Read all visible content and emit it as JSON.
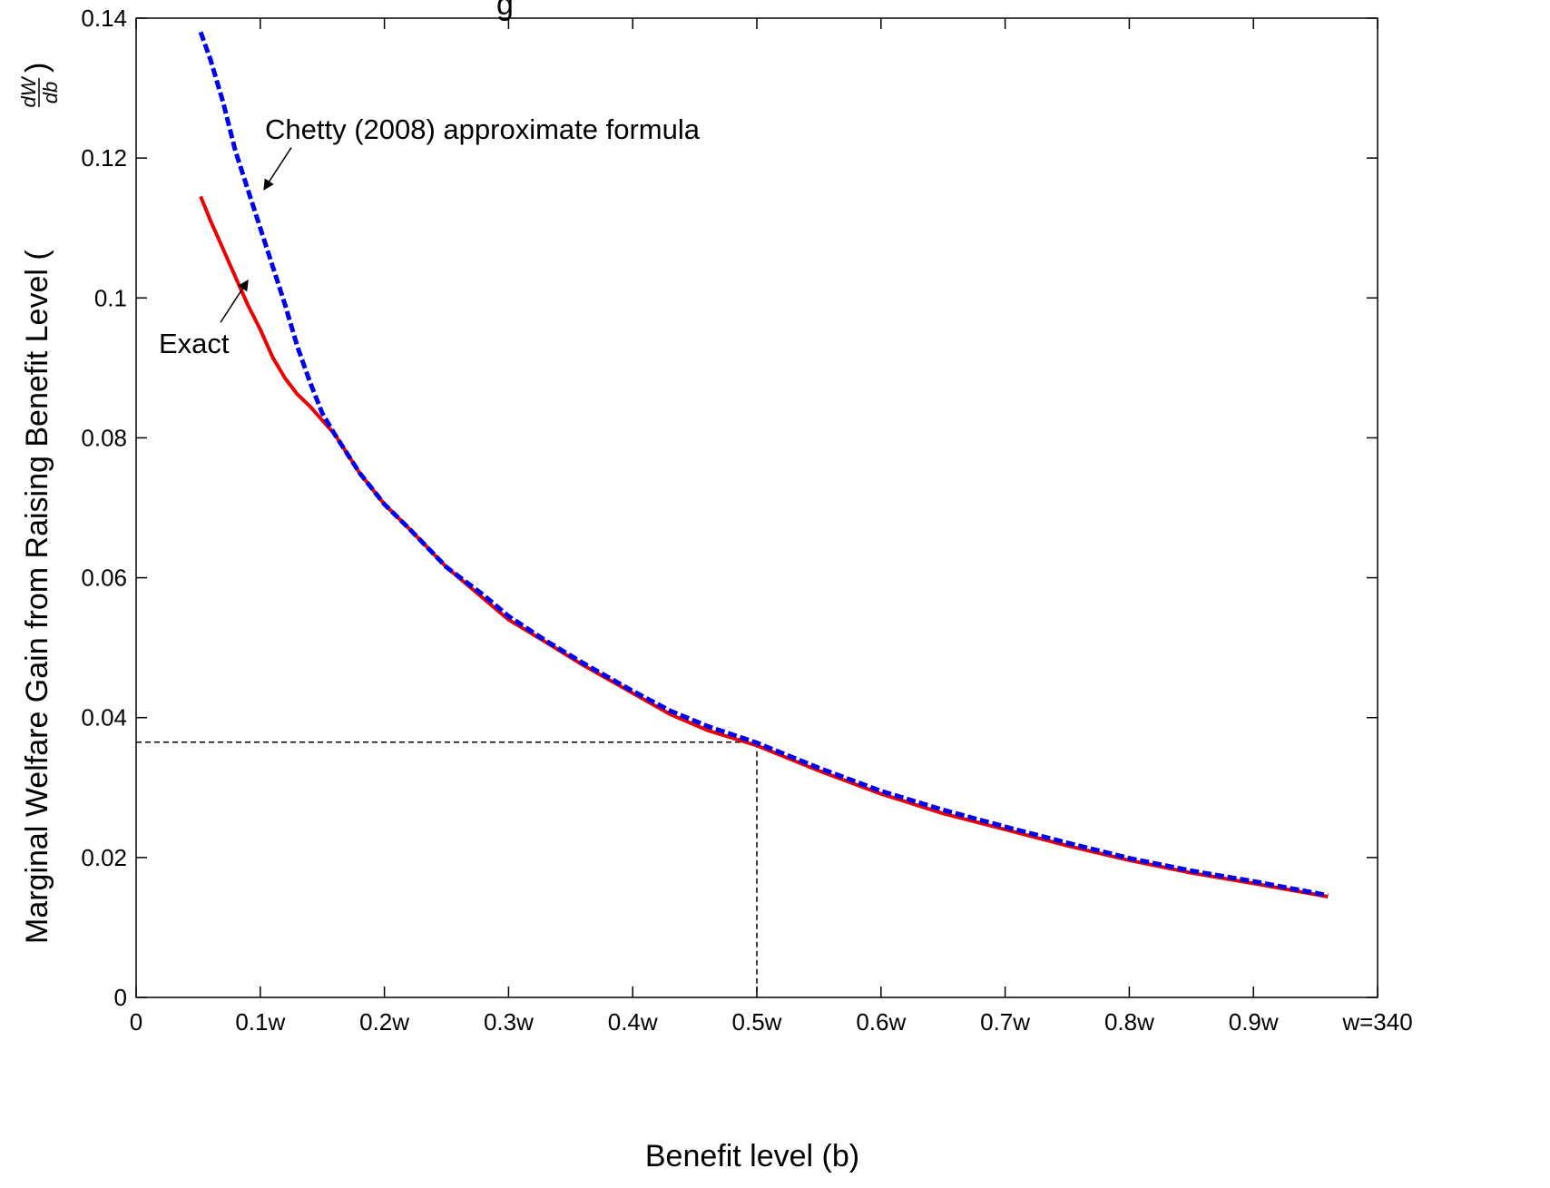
{
  "chart_data": {
    "type": "line",
    "title_fragment": "g",
    "xlabel": "Benefit level (b)",
    "ylabel": "Marginal Welfare Gain from Raising Benefit Level (",
    "ylabel_fraction": {
      "numerator": "dW",
      "denominator": "db",
      "close": ")"
    },
    "xlim": [
      0,
      1
    ],
    "ylim": [
      0,
      0.14
    ],
    "x_ticks": [
      {
        "value": 0,
        "label": "0"
      },
      {
        "value": 0.1,
        "label": "0.1w"
      },
      {
        "value": 0.2,
        "label": "0.2w"
      },
      {
        "value": 0.3,
        "label": "0.3w"
      },
      {
        "value": 0.4,
        "label": "0.4w"
      },
      {
        "value": 0.5,
        "label": "0.5w"
      },
      {
        "value": 0.6,
        "label": "0.6w"
      },
      {
        "value": 0.7,
        "label": "0.7w"
      },
      {
        "value": 0.8,
        "label": "0.8w"
      },
      {
        "value": 0.9,
        "label": "0.9w"
      },
      {
        "value": 1.0,
        "label": "w=340"
      }
    ],
    "y_ticks": [
      {
        "value": 0,
        "label": "0"
      },
      {
        "value": 0.02,
        "label": "0.02"
      },
      {
        "value": 0.04,
        "label": "0.04"
      },
      {
        "value": 0.06,
        "label": "0.06"
      },
      {
        "value": 0.08,
        "label": "0.08"
      },
      {
        "value": 0.1,
        "label": "0.1"
      },
      {
        "value": 0.12,
        "label": "0.12"
      },
      {
        "value": 0.14,
        "label": "0.14"
      }
    ],
    "grid": false,
    "series": [
      {
        "name": "Chetty (2008) approximate formula",
        "color": "#0000ee",
        "style": "dashed",
        "x": [
          0.052,
          0.06,
          0.07,
          0.08,
          0.09,
          0.1,
          0.11,
          0.12,
          0.13,
          0.14,
          0.15,
          0.16,
          0.18,
          0.2,
          0.22,
          0.25,
          0.28,
          0.3,
          0.33,
          0.36,
          0.4,
          0.43,
          0.46,
          0.5,
          0.55,
          0.6,
          0.65,
          0.7,
          0.75,
          0.8,
          0.85,
          0.9,
          0.96
        ],
        "y": [
          0.138,
          0.134,
          0.128,
          0.121,
          0.1155,
          0.11,
          0.1045,
          0.099,
          0.093,
          0.088,
          0.0835,
          0.0805,
          0.075,
          0.0705,
          0.067,
          0.0615,
          0.0575,
          0.0545,
          0.051,
          0.0478,
          0.0438,
          0.041,
          0.0388,
          0.0364,
          0.0328,
          0.0295,
          0.0268,
          0.0244,
          0.0221,
          0.0199,
          0.0181,
          0.0166,
          0.0146
        ]
      },
      {
        "name": "Exact",
        "color": "#ee0000",
        "style": "solid",
        "x": [
          0.052,
          0.06,
          0.07,
          0.08,
          0.09,
          0.1,
          0.11,
          0.12,
          0.13,
          0.14,
          0.15,
          0.16,
          0.18,
          0.2,
          0.22,
          0.25,
          0.28,
          0.3,
          0.33,
          0.36,
          0.4,
          0.43,
          0.46,
          0.5,
          0.55,
          0.6,
          0.65,
          0.7,
          0.75,
          0.8,
          0.85,
          0.9,
          0.96
        ],
        "y": [
          0.1145,
          0.111,
          0.107,
          0.103,
          0.099,
          0.0955,
          0.0915,
          0.0885,
          0.0862,
          0.0845,
          0.0825,
          0.0805,
          0.075,
          0.0705,
          0.067,
          0.0615,
          0.057,
          0.054,
          0.0508,
          0.0475,
          0.0435,
          0.0405,
          0.0382,
          0.036,
          0.0324,
          0.0291,
          0.0263,
          0.024,
          0.0217,
          0.0196,
          0.0178,
          0.0163,
          0.0144
        ]
      }
    ],
    "reference_lines": {
      "x": 0.5,
      "y": 0.0365,
      "style": "dashed",
      "color": "#000000"
    },
    "annotations": [
      {
        "text": "Chetty (2008) approximate formula",
        "arrow_from": [
          0.125,
          0.1215
        ],
        "arrow_to": [
          0.103,
          0.1155
        ]
      },
      {
        "text": "Exact",
        "arrow_from": [
          0.068,
          0.0965
        ],
        "arrow_to": [
          0.09,
          0.1025
        ]
      }
    ]
  }
}
